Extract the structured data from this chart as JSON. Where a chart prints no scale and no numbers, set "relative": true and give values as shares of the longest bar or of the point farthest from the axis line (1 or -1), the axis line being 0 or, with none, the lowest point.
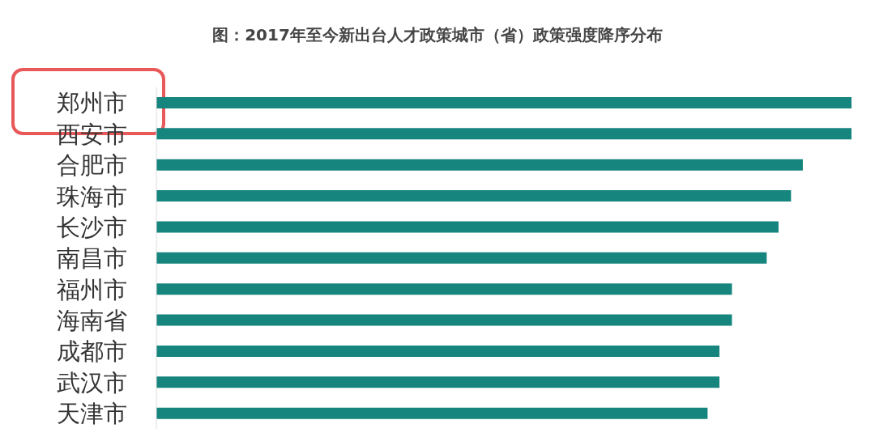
{
  "chart_data": {
    "type": "bar",
    "orientation": "horizontal",
    "relative": true,
    "title": "图：2017年至今新出台人才政策城市（省）政策强度降序分布",
    "categories": [
      "郑州市",
      "西安市",
      "合肥市",
      "珠海市",
      "长沙市",
      "南昌市",
      "福州市",
      "海南省",
      "成都市",
      "武汉市",
      "天津市"
    ],
    "values": [
      1,
      1,
      0.93,
      0.913,
      0.895,
      0.878,
      0.828,
      0.828,
      0.81,
      0.81,
      0.793
    ],
    "color": "#16857e",
    "grid": false,
    "legend": false
  }
}
